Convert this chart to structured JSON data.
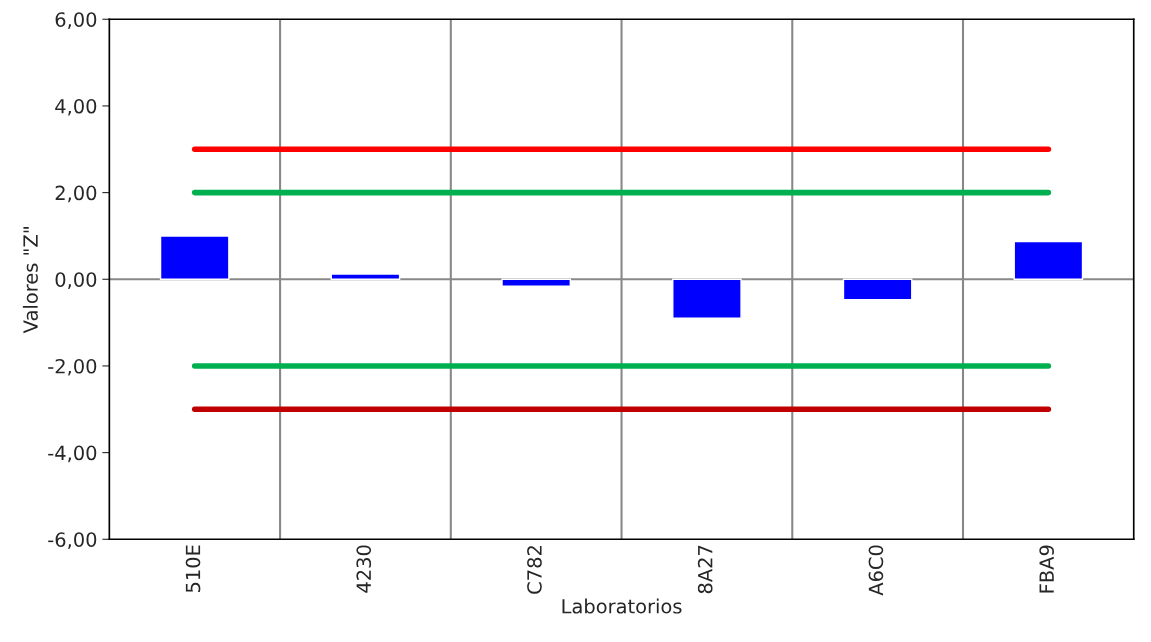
{
  "chart_data": {
    "type": "bar",
    "xlabel": "Laboratorios",
    "ylabel": "Valores \"Z\"",
    "categories": [
      "510E",
      "4230",
      "C782",
      "8A27",
      "A6C0",
      "FBA9"
    ],
    "series": [
      {
        "color": "#0000ff",
        "values": [
          1.0,
          0.12,
          -0.16,
          -0.9,
          -0.47,
          0.87
        ]
      },
      {
        "type": "line",
        "color": "#ff0000",
        "values": [
          3,
          3,
          3,
          3,
          3,
          3
        ]
      },
      {
        "type": "line",
        "color": "#00b050",
        "values": [
          2,
          2,
          2,
          2,
          2,
          2
        ]
      },
      {
        "type": "line",
        "color": "#00b050",
        "values": [
          -2,
          -2,
          -2,
          -2,
          -2,
          -2
        ]
      },
      {
        "type": "line",
        "color": "#c00000",
        "values": [
          -3,
          -3,
          -3,
          -3,
          -3,
          -3
        ]
      }
    ],
    "ylim": [
      -6,
      6
    ],
    "yticks": [
      {
        "value": -6,
        "label": "-6,00"
      },
      {
        "value": -4,
        "label": "-4,00"
      },
      {
        "value": -2,
        "label": "-2,00"
      },
      {
        "value": 0,
        "label": "0,00"
      },
      {
        "value": 2,
        "label": "2,00"
      },
      {
        "value": 4,
        "label": "4,00"
      },
      {
        "value": 6,
        "label": "6,00"
      }
    ],
    "ref_lines": [
      {
        "axis": "y",
        "value": 0,
        "color": "#888888"
      }
    ],
    "grid": "x",
    "marker": "none",
    "line_style": "solid"
  }
}
